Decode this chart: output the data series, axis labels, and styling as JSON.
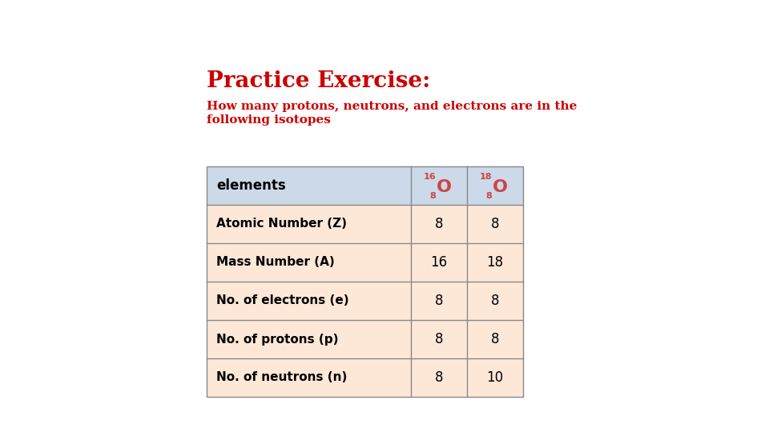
{
  "title": "Practice Exercise:",
  "subtitle_line1": "How many protons, neutrons, and electrons are in the",
  "subtitle_line2": "following isotopes",
  "title_color": "#cc0000",
  "subtitle_color": "#cc0000",
  "background_color": "#ffffff",
  "table": {
    "header_row_bg": "#ccd9e8",
    "data_row_bg": "#fde8d8",
    "border_color": "#888888",
    "text_color": "#000000",
    "isotope_color": "#cc4444",
    "rows": [
      [
        "Atomic Number (Z)",
        "8",
        "8"
      ],
      [
        "Mass Number (A)",
        "16",
        "18"
      ],
      [
        "No. of electrons (e)",
        "8",
        "8"
      ],
      [
        "No. of protons (p)",
        "8",
        "8"
      ],
      [
        "No. of neutrons (n)",
        "8",
        "10"
      ]
    ]
  }
}
